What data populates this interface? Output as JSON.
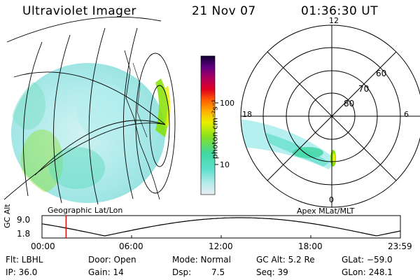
{
  "header": {
    "title": "Ultraviolet Imager",
    "date": "21 Nov 07",
    "time": "01:36:30 UT"
  },
  "colorbar": {
    "unit_label": "photon cm⁻²s⁻¹",
    "ticks": [
      "100",
      "10"
    ]
  },
  "left_panel": {
    "caption": "Geographic Lat/Lon"
  },
  "right_panel": {
    "caption": "Apex MLat/MLT",
    "mlt_labels": {
      "top": "12",
      "left": "18",
      "right": "6",
      "bottom": "0"
    },
    "lat_labels": [
      "60",
      "70",
      "80"
    ]
  },
  "orbit_plot": {
    "ylabel": "GC Alt",
    "yticks": [
      "9.0",
      "1.8"
    ],
    "xticks": [
      "00:00",
      "06:00",
      "12:00",
      "18:00",
      "23:59"
    ],
    "current_time_hours": 1.61
  },
  "info": {
    "row1": {
      "filter": "Flt: LBHL",
      "door": "Door: Open",
      "mode": "Mode: Normal",
      "gc_alt": "GC Alt: 5.2 Re",
      "glat": "GLat: −59.0"
    },
    "row2": {
      "ip": "IP: 36.0",
      "gain": "Gain: 14",
      "dsp_label": "Dsp:",
      "dsp_value": "7.5",
      "seq": "Seq: 39",
      "glon": "GLon: 248.1"
    }
  },
  "colors": {
    "background": "#ffffff",
    "ink": "#000000",
    "aurora_low": "#a8ecec",
    "aurora_mid": "#70e2d0",
    "aurora_high": "#84e000",
    "marker": "#e00000"
  }
}
